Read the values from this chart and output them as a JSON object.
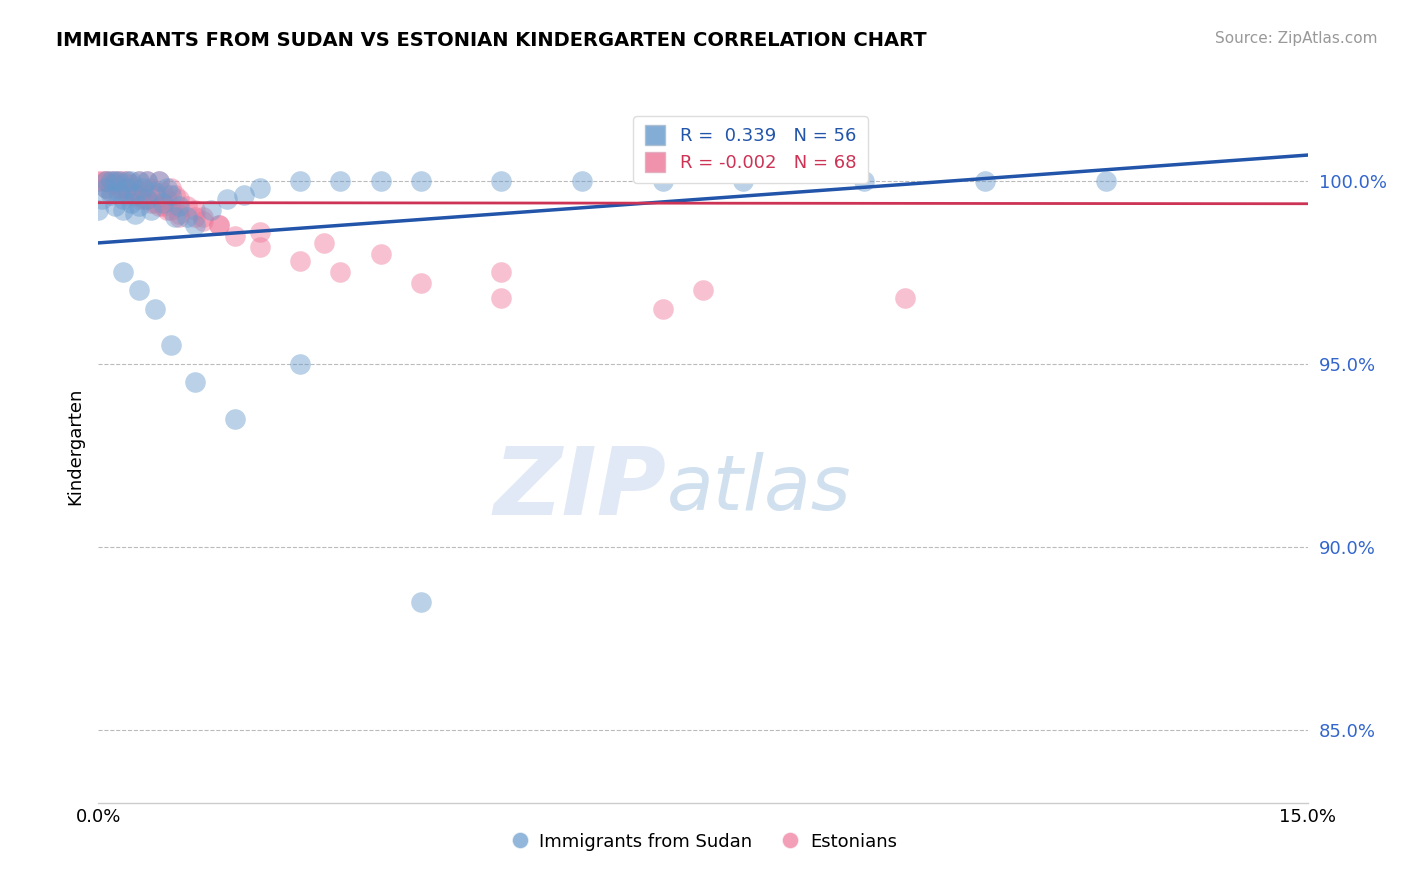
{
  "title": "IMMIGRANTS FROM SUDAN VS ESTONIAN KINDERGARTEN CORRELATION CHART",
  "source_text": "Source: ZipAtlas.com",
  "xlabel": "",
  "ylabel": "Kindergarten",
  "legend_labels": [
    "Immigrants from Sudan",
    "Estonians"
  ],
  "xlim": [
    0.0,
    15.0
  ],
  "ylim": [
    83.0,
    102.5
  ],
  "yticks": [
    85.0,
    90.0,
    95.0,
    100.0
  ],
  "xticks": [
    0.0,
    15.0
  ],
  "R_blue": 0.339,
  "N_blue": 56,
  "R_pink": -0.002,
  "N_pink": 68,
  "blue_color": "#6699cc",
  "pink_color": "#ee7799",
  "blue_line_color": "#2255aa",
  "pink_line_color": "#cc3355",
  "watermark_zip": "ZIP",
  "watermark_atlas": "atlas",
  "blue_scatter_x": [
    0.0,
    0.05,
    0.1,
    0.1,
    0.15,
    0.15,
    0.2,
    0.2,
    0.25,
    0.25,
    0.3,
    0.3,
    0.35,
    0.35,
    0.4,
    0.4,
    0.45,
    0.45,
    0.5,
    0.5,
    0.55,
    0.6,
    0.6,
    0.65,
    0.7,
    0.75,
    0.8,
    0.85,
    0.9,
    0.95,
    1.0,
    1.1,
    1.2,
    1.4,
    1.6,
    1.8,
    2.0,
    2.5,
    3.0,
    3.5,
    4.0,
    5.0,
    6.0,
    7.0,
    8.0,
    9.5,
    11.0,
    12.5,
    0.3,
    0.5,
    0.7,
    0.9,
    1.2,
    1.7,
    2.5,
    4.0
  ],
  "blue_scatter_y": [
    99.2,
    99.5,
    99.8,
    100.0,
    100.0,
    99.6,
    100.0,
    99.3,
    100.0,
    99.7,
    99.5,
    99.2,
    100.0,
    99.8,
    100.0,
    99.4,
    99.6,
    99.1,
    100.0,
    99.3,
    99.8,
    100.0,
    99.5,
    99.2,
    99.7,
    100.0,
    99.4,
    99.8,
    99.6,
    99.0,
    99.3,
    99.0,
    98.8,
    99.2,
    99.5,
    99.6,
    99.8,
    100.0,
    100.0,
    100.0,
    100.0,
    100.0,
    100.0,
    100.0,
    100.0,
    100.0,
    100.0,
    100.0,
    97.5,
    97.0,
    96.5,
    95.5,
    94.5,
    93.5,
    95.0,
    88.5
  ],
  "pink_scatter_x": [
    0.0,
    0.05,
    0.1,
    0.1,
    0.15,
    0.15,
    0.2,
    0.2,
    0.25,
    0.25,
    0.3,
    0.3,
    0.35,
    0.35,
    0.4,
    0.4,
    0.45,
    0.5,
    0.5,
    0.55,
    0.6,
    0.65,
    0.7,
    0.75,
    0.8,
    0.85,
    0.9,
    0.95,
    1.0,
    1.1,
    1.2,
    1.3,
    1.5,
    1.7,
    2.0,
    2.5,
    3.0,
    4.0,
    5.0,
    7.0,
    0.1,
    0.2,
    0.3,
    0.4,
    0.5,
    0.6,
    0.7,
    0.8,
    0.9,
    1.0,
    1.2,
    1.5,
    2.0,
    2.8,
    3.5,
    5.0,
    7.5,
    10.0,
    0.15,
    0.25,
    0.35,
    0.45,
    0.55,
    0.65,
    0.75,
    0.85,
    1.0,
    1.3
  ],
  "pink_scatter_y": [
    100.0,
    100.0,
    100.0,
    99.8,
    100.0,
    99.7,
    100.0,
    99.9,
    100.0,
    99.8,
    99.8,
    100.0,
    100.0,
    99.6,
    99.7,
    99.9,
    99.8,
    100.0,
    99.5,
    99.7,
    100.0,
    99.8,
    99.6,
    100.0,
    99.7,
    99.5,
    99.8,
    99.6,
    99.5,
    99.3,
    99.2,
    99.0,
    98.8,
    98.5,
    98.2,
    97.8,
    97.5,
    97.2,
    96.8,
    96.5,
    100.0,
    99.9,
    99.8,
    99.7,
    99.6,
    99.5,
    99.4,
    99.3,
    99.2,
    99.1,
    99.0,
    98.8,
    98.6,
    98.3,
    98.0,
    97.5,
    97.0,
    96.8,
    99.9,
    99.8,
    99.7,
    99.6,
    99.5,
    99.4,
    99.3,
    99.2,
    99.0,
    98.9
  ],
  "blue_trend_x": [
    0.0,
    15.0
  ],
  "blue_trend_y": [
    98.3,
    100.7
  ],
  "pink_trend_x": [
    0.0,
    15.0
  ],
  "pink_trend_y": [
    99.4,
    99.37
  ]
}
